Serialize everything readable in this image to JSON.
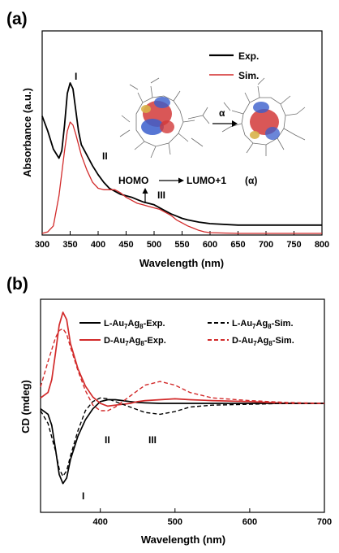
{
  "chart_data": [
    {
      "panel": "(a)",
      "type": "line",
      "xlabel": "Wavelength (nm)",
      "ylabel": "Absorbance (a.u.)",
      "xlim": [
        300,
        800
      ],
      "xticks": [
        300,
        350,
        400,
        450,
        500,
        550,
        600,
        650,
        700,
        750,
        800
      ],
      "yticks_shown": false,
      "legend_position": "top-right",
      "colors": {
        "exp": "#000000",
        "sim": "#d22a2a"
      },
      "series": [
        {
          "name": "Exp.",
          "x": [
            300,
            310,
            320,
            330,
            335,
            340,
            345,
            350,
            355,
            360,
            365,
            370,
            380,
            390,
            400,
            410,
            420,
            430,
            440,
            450,
            460,
            470,
            480,
            490,
            500,
            510,
            520,
            530,
            540,
            550,
            560,
            580,
            600,
            650,
            700,
            750,
            800
          ],
          "y": [
            0.78,
            0.68,
            0.56,
            0.5,
            0.55,
            0.72,
            0.93,
            1.0,
            0.96,
            0.82,
            0.68,
            0.59,
            0.52,
            0.45,
            0.39,
            0.34,
            0.3,
            0.28,
            0.26,
            0.25,
            0.24,
            0.225,
            0.21,
            0.2,
            0.19,
            0.17,
            0.15,
            0.13,
            0.115,
            0.1,
            0.09,
            0.075,
            0.065,
            0.055,
            0.055,
            0.055,
            0.055
          ]
        },
        {
          "name": "Sim.",
          "x": [
            300,
            310,
            320,
            330,
            340,
            345,
            350,
            355,
            360,
            370,
            380,
            390,
            400,
            410,
            420,
            430,
            440,
            450,
            460,
            470,
            480,
            490,
            500,
            510,
            520,
            530,
            540,
            550,
            560,
            570,
            580,
            590,
            600,
            650,
            700,
            800
          ],
          "y": [
            0.0,
            0.01,
            0.05,
            0.25,
            0.55,
            0.68,
            0.74,
            0.72,
            0.66,
            0.52,
            0.42,
            0.34,
            0.3,
            0.29,
            0.29,
            0.29,
            0.27,
            0.24,
            0.22,
            0.2,
            0.19,
            0.18,
            0.17,
            0.16,
            0.14,
            0.12,
            0.09,
            0.07,
            0.05,
            0.035,
            0.02,
            0.01,
            0.005,
            0.0,
            0.0,
            0.0
          ]
        }
      ],
      "annotations": {
        "peak_I": "I",
        "peak_II": "II",
        "peak_III": "III",
        "homo": "HOMO",
        "lumo": "LUMO+1",
        "alpha_label": "(α)",
        "alpha_arrow": "α"
      }
    },
    {
      "panel": "(b)",
      "type": "line",
      "xlabel": "Wavelength (nm)",
      "ylabel": "CD (mdeg)",
      "xlim": [
        320,
        700
      ],
      "xticks": [
        400,
        500,
        600,
        700
      ],
      "yticks_shown": false,
      "legend_position": "top",
      "colors": {
        "l": "#000000",
        "d": "#d22a2a"
      },
      "series": [
        {
          "name": "L-Au7Ag8-Exp.",
          "style": "solid",
          "x": [
            320,
            330,
            335,
            340,
            345,
            350,
            355,
            360,
            370,
            380,
            390,
            400,
            410,
            420,
            430,
            440,
            450,
            460,
            480,
            500,
            520,
            550,
            600,
            650,
            700
          ],
          "y": [
            -0.06,
            -0.12,
            -0.24,
            -0.5,
            -0.78,
            -0.88,
            -0.82,
            -0.62,
            -0.36,
            -0.18,
            -0.06,
            0.02,
            0.04,
            0.04,
            0.03,
            0.02,
            0.01,
            0.005,
            0.0,
            0.0,
            0.0,
            0.0,
            0.0,
            0.0,
            0.0
          ]
        },
        {
          "name": "D-Au7Ag8-Exp.",
          "style": "solid",
          "x": [
            320,
            330,
            335,
            340,
            345,
            350,
            355,
            360,
            370,
            380,
            390,
            400,
            410,
            420,
            430,
            440,
            450,
            460,
            480,
            500,
            520,
            550,
            600,
            650,
            700
          ],
          "y": [
            0.06,
            0.12,
            0.26,
            0.55,
            0.86,
            1.0,
            0.92,
            0.66,
            0.38,
            0.19,
            0.07,
            0.0,
            -0.03,
            -0.02,
            -0.01,
            0.0,
            0.02,
            0.03,
            0.04,
            0.05,
            0.04,
            0.03,
            0.02,
            0.0,
            0.0
          ]
        },
        {
          "name": "L-Au7Ag8-Sim.",
          "style": "dashed",
          "x": [
            320,
            330,
            340,
            345,
            350,
            355,
            360,
            370,
            380,
            390,
            400,
            410,
            420,
            440,
            460,
            480,
            500,
            520,
            550,
            600,
            650,
            700
          ],
          "y": [
            -0.08,
            -0.22,
            -0.52,
            -0.72,
            -0.8,
            -0.74,
            -0.58,
            -0.3,
            -0.08,
            0.02,
            0.06,
            0.05,
            0.02,
            -0.04,
            -0.1,
            -0.12,
            -0.09,
            -0.04,
            -0.02,
            -0.01,
            0.0,
            0.0
          ]
        },
        {
          "name": "D-Au7Ag8-Sim.",
          "style": "dashed",
          "x": [
            320,
            330,
            340,
            345,
            350,
            355,
            360,
            370,
            380,
            390,
            400,
            410,
            420,
            440,
            460,
            480,
            500,
            520,
            550,
            600,
            650,
            700
          ],
          "y": [
            0.18,
            0.46,
            0.72,
            0.8,
            0.82,
            0.76,
            0.62,
            0.36,
            0.14,
            -0.02,
            -0.08,
            -0.08,
            -0.04,
            0.08,
            0.2,
            0.24,
            0.2,
            0.12,
            0.06,
            0.03,
            0.01,
            0.0
          ]
        }
      ],
      "legend": {
        "l_exp_prefix": "L-Au",
        "l_exp_sub1": "7",
        "l_exp_mid": "Ag",
        "l_exp_sub2": "8",
        "l_exp_suffix": "-Exp.",
        "d_exp_prefix": "D-Au",
        "d_exp_sub1": "7",
        "d_exp_mid": "Ag",
        "d_exp_sub2": "8",
        "d_exp_suffix": "-Exp.",
        "l_sim_prefix": "L-Au",
        "l_sim_sub1": "7",
        "l_sim_mid": "Ag",
        "l_sim_sub2": "8",
        "l_sim_suffix": "-Sim.",
        "d_sim_prefix": "D-Au",
        "d_sim_sub1": "7",
        "d_sim_mid": "Ag",
        "d_sim_sub2": "8",
        "d_sim_suffix": "-Sim."
      },
      "annotations": {
        "peak_I": "I",
        "peak_II": "II",
        "peak_III": "III"
      }
    }
  ]
}
